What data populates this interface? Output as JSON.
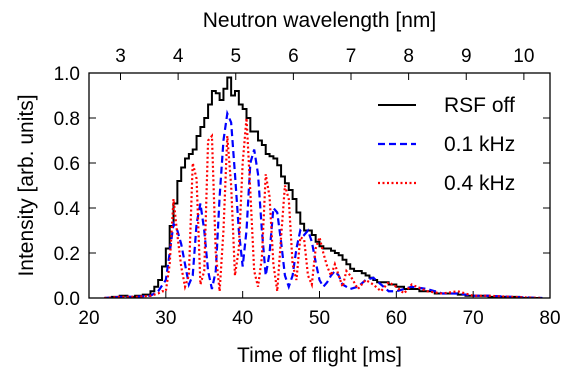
{
  "chart_data": {
    "type": "line",
    "title": "",
    "xlabel": "Time of flight [ms]",
    "ylabel": "Intensity [arb. units]",
    "x2label": "Neutron wavelength [nm]",
    "xlim": [
      20,
      80
    ],
    "ylim": [
      0.0,
      1.0
    ],
    "xticks": [
      20,
      30,
      40,
      50,
      60,
      70,
      80
    ],
    "yticks": [
      0.0,
      0.2,
      0.4,
      0.6,
      0.8,
      1.0
    ],
    "yticklabels": [
      "0.0",
      "0.2",
      "0.4",
      "0.6",
      "0.8",
      "1.0"
    ],
    "x2ticks": [
      3,
      4,
      5,
      6,
      7,
      8,
      9,
      10
    ],
    "x2_tick_positions_ms": [
      24.1,
      31.6,
      39.1,
      46.6,
      54.1,
      61.6,
      69.1,
      76.6
    ],
    "grid": false,
    "legend_position": "top-right",
    "series": [
      {
        "name": "RSF off",
        "color": "#000000",
        "style": "solid",
        "step": true,
        "x": [
          22,
          23,
          24,
          25,
          26,
          27,
          28,
          28.5,
          29,
          29.5,
          30,
          30.5,
          31,
          31.5,
          32,
          32.5,
          33,
          33.5,
          34,
          34.5,
          35,
          35.5,
          36,
          36.5,
          37,
          37.5,
          38,
          38.5,
          39,
          39.5,
          40,
          40.5,
          41,
          41.5,
          42,
          42.5,
          43,
          43.5,
          44,
          44.5,
          45,
          45.5,
          46,
          46.5,
          47,
          47.5,
          48,
          48.5,
          49,
          49.5,
          50,
          50.5,
          51,
          51.5,
          52,
          52.5,
          53,
          53.5,
          54,
          54.5,
          55,
          55.5,
          56,
          56.5,
          57,
          57.5,
          58,
          59,
          60,
          61,
          62,
          63,
          64,
          65,
          66,
          67,
          68,
          69,
          70,
          72,
          74,
          76,
          78,
          79
        ],
        "y": [
          0.0,
          0.005,
          0.01,
          0.005,
          0.01,
          0.015,
          0.03,
          0.05,
          0.08,
          0.14,
          0.22,
          0.32,
          0.42,
          0.52,
          0.58,
          0.62,
          0.64,
          0.66,
          0.72,
          0.76,
          0.8,
          0.86,
          0.92,
          0.91,
          0.88,
          0.93,
          0.98,
          0.9,
          0.92,
          0.86,
          0.84,
          0.8,
          0.74,
          0.74,
          0.7,
          0.68,
          0.64,
          0.63,
          0.62,
          0.59,
          0.54,
          0.51,
          0.48,
          0.44,
          0.38,
          0.33,
          0.3,
          0.3,
          0.28,
          0.25,
          0.23,
          0.22,
          0.22,
          0.21,
          0.2,
          0.19,
          0.17,
          0.15,
          0.13,
          0.12,
          0.12,
          0.11,
          0.1,
          0.09,
          0.08,
          0.07,
          0.07,
          0.06,
          0.05,
          0.04,
          0.04,
          0.03,
          0.03,
          0.02,
          0.02,
          0.02,
          0.015,
          0.01,
          0.01,
          0.005,
          0.005,
          0.0,
          0.0,
          0.0
        ]
      },
      {
        "name": "0.1 kHz",
        "color": "#0000ff",
        "style": "dashed",
        "x": [
          22,
          24,
          26,
          28,
          29,
          30,
          30.5,
          31,
          31.5,
          32,
          32.5,
          33,
          33.5,
          34,
          34.5,
          35,
          35.5,
          36,
          36.5,
          37,
          37.5,
          38,
          38.5,
          39,
          39.5,
          40,
          40.5,
          41,
          41.5,
          42,
          42.5,
          43,
          43.5,
          44,
          44.5,
          45,
          45.5,
          46,
          46.5,
          47,
          47.5,
          48,
          48.5,
          49,
          49.5,
          50,
          50.5,
          51,
          51.5,
          52,
          52.5,
          53,
          54,
          55,
          56,
          57,
          58,
          59,
          60,
          62,
          64,
          66,
          68,
          70,
          72,
          75,
          79
        ],
        "y": [
          0.0,
          0.005,
          0.005,
          0.01,
          0.03,
          0.08,
          0.2,
          0.33,
          0.3,
          0.24,
          0.15,
          0.06,
          0.1,
          0.33,
          0.42,
          0.3,
          0.12,
          0.04,
          0.12,
          0.45,
          0.7,
          0.82,
          0.78,
          0.55,
          0.3,
          0.14,
          0.3,
          0.6,
          0.66,
          0.55,
          0.3,
          0.1,
          0.2,
          0.4,
          0.38,
          0.25,
          0.1,
          0.05,
          0.1,
          0.22,
          0.3,
          0.28,
          0.3,
          0.25,
          0.16,
          0.08,
          0.05,
          0.07,
          0.1,
          0.12,
          0.1,
          0.06,
          0.04,
          0.05,
          0.08,
          0.09,
          0.06,
          0.03,
          0.03,
          0.05,
          0.04,
          0.02,
          0.02,
          0.01,
          0.01,
          0.005,
          0.0
        ]
      },
      {
        "name": "0.4 kHz",
        "color": "#ff0000",
        "style": "dotted",
        "x": [
          22,
          24,
          26,
          28,
          29,
          29.5,
          30,
          30.5,
          31,
          31.5,
          32,
          32.5,
          33,
          33.5,
          34,
          34.5,
          35,
          35.5,
          36,
          36.5,
          37,
          37.5,
          38,
          38.5,
          39,
          39.5,
          40,
          40.5,
          41,
          41.5,
          42,
          42.5,
          43,
          43.5,
          44,
          44.5,
          45,
          45.5,
          46,
          46.5,
          47,
          47.5,
          48,
          48.5,
          49,
          49.5,
          50,
          50.5,
          51,
          51.5,
          52,
          52.5,
          53,
          53.5,
          54,
          55,
          56,
          57,
          58,
          59,
          60,
          61,
          62,
          64,
          66,
          68,
          70,
          72,
          75,
          79
        ],
        "y": [
          0.0,
          0.005,
          0.005,
          0.01,
          0.02,
          0.03,
          0.03,
          0.15,
          0.44,
          0.28,
          0.14,
          0.05,
          0.1,
          0.6,
          0.53,
          0.06,
          0.12,
          0.7,
          0.72,
          0.2,
          0.03,
          0.3,
          0.72,
          0.5,
          0.1,
          0.22,
          0.6,
          0.8,
          0.47,
          0.12,
          0.05,
          0.18,
          0.55,
          0.45,
          0.15,
          0.03,
          0.27,
          0.5,
          0.44,
          0.15,
          0.08,
          0.27,
          0.26,
          0.1,
          0.06,
          0.22,
          0.27,
          0.2,
          0.14,
          0.1,
          0.15,
          0.1,
          0.05,
          0.12,
          0.1,
          0.04,
          0.08,
          0.06,
          0.03,
          0.07,
          0.05,
          0.02,
          0.06,
          0.03,
          0.02,
          0.03,
          0.01,
          0.01,
          0.005,
          0.0
        ]
      }
    ]
  }
}
